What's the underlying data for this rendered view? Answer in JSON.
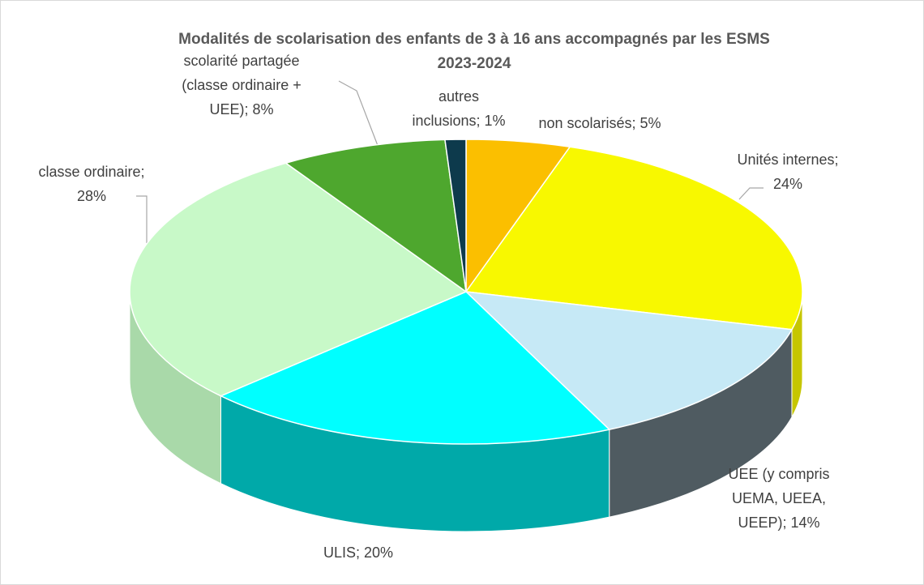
{
  "chart_data": {
    "type": "pie3d",
    "title": "Modalités de scolarisation des enfants de 3 à 16 ans accompagnés par les ESMS\n2023-2024",
    "categories": [
      "non scolarisés",
      "Unités internes",
      "UEE (y compris UEMA, UEEA, UEEP)",
      "ULIS",
      "classe ordinaire",
      "scolarité partagée (classe ordinaire + UEE)",
      "autres inclusions"
    ],
    "values": [
      5,
      24,
      14,
      20,
      28,
      8,
      1
    ],
    "value_labels": [
      "non scolarisés; 5%",
      "Unités internes;\n24%",
      "UEE (y compris\nUEMA, UEEA,\nUEEP); 14%",
      "ULIS; 20%",
      "classe ordinaire;\n28%",
      "scolarité partagée\n(classe ordinaire +\nUEE); 8%",
      "autres\ninclusions; 1%"
    ],
    "colors": [
      "#fbbf00",
      "#f8f800",
      "#c6e9f6",
      "#00ffff",
      "#c8f9c8",
      "#4ea72e",
      "#0d3a4c"
    ],
    "side_colors": [
      "#c99800",
      "#c6c600",
      "#4f5b61",
      "#00a9a9",
      "#a9d9a9",
      "#3a7f22",
      "#082a38"
    ]
  }
}
